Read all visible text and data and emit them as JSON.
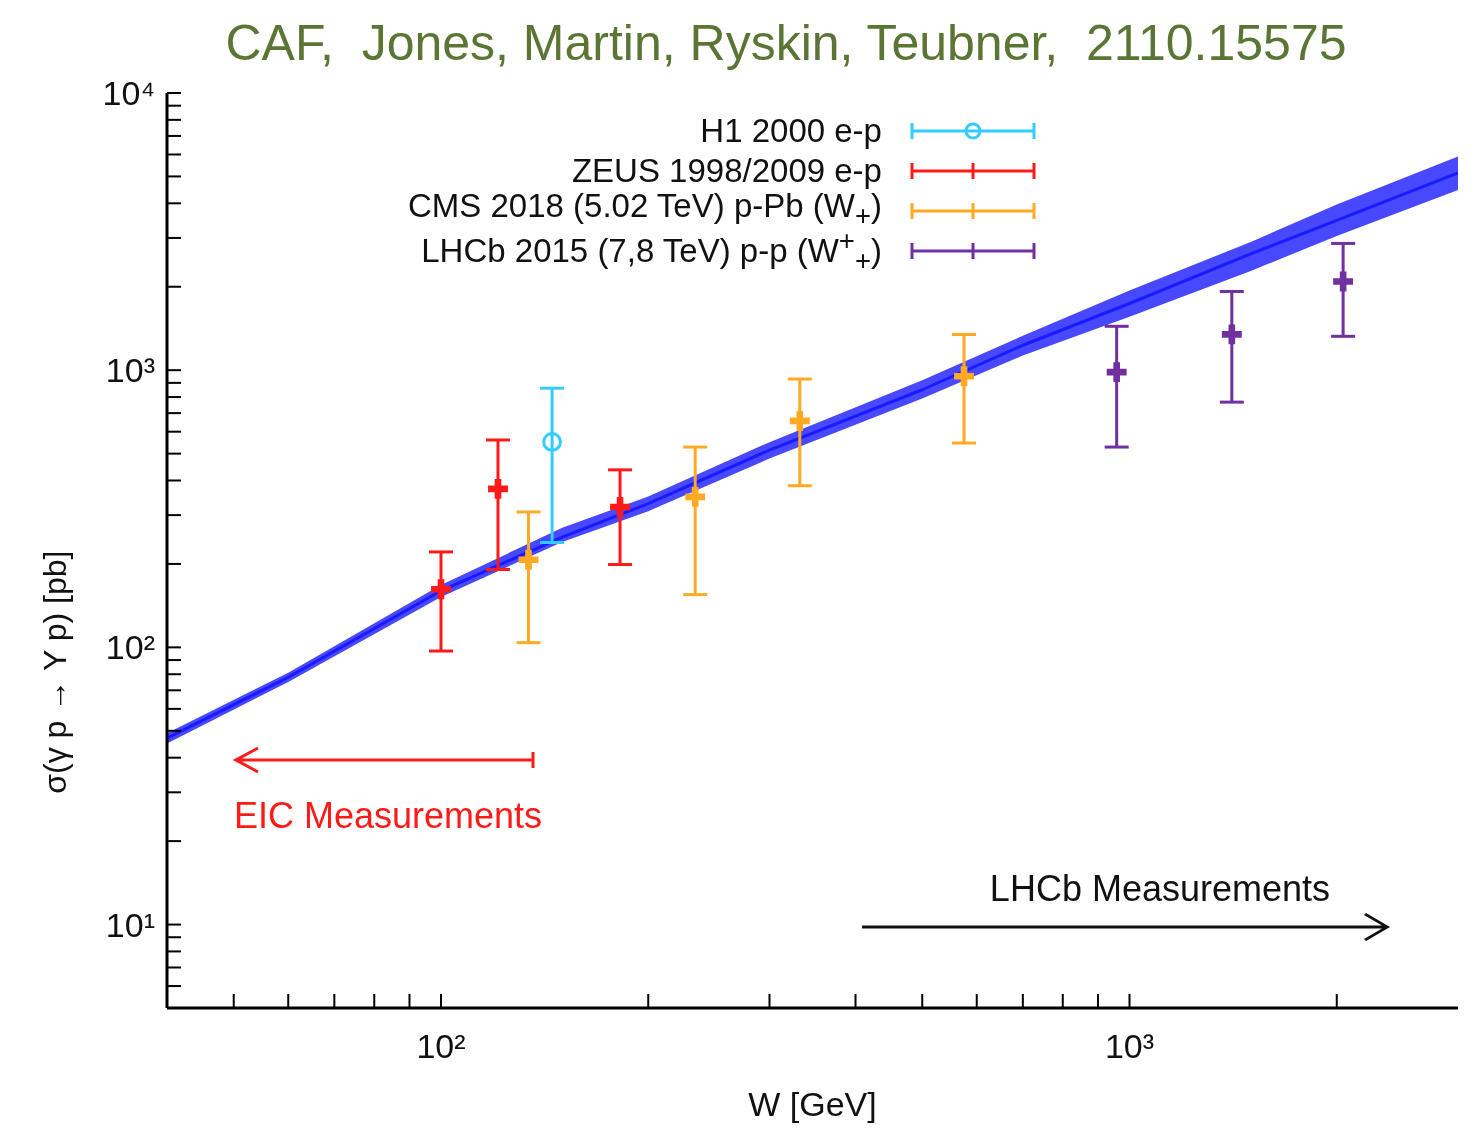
{
  "chart_data": {
    "type": "scatter",
    "title": "CAF,  Jones, Martin, Ryskin, Teubner,  2110.15575",
    "xlabel": "W [GeV]",
    "ylabel": "σ(γ p → Υ p) [pb]",
    "log": "xy",
    "grid": false,
    "legend": "top",
    "xlim": [
      40,
      3000
    ],
    "ylim": [
      5,
      10000
    ],
    "xticks": [
      {
        "value": 50,
        "label": null
      },
      {
        "value": 60,
        "label": null
      },
      {
        "value": 70,
        "label": null
      },
      {
        "value": 80,
        "label": null
      },
      {
        "value": 90,
        "label": null
      },
      {
        "value": 100,
        "label": "10²"
      },
      {
        "value": 200,
        "label": null
      },
      {
        "value": 300,
        "label": null
      },
      {
        "value": 400,
        "label": null
      },
      {
        "value": 500,
        "label": null
      },
      {
        "value": 600,
        "label": null
      },
      {
        "value": 700,
        "label": null
      },
      {
        "value": 800,
        "label": null
      },
      {
        "value": 900,
        "label": null
      },
      {
        "value": 1000,
        "label": "10³"
      },
      {
        "value": 2000,
        "label": null
      }
    ],
    "yticks": [
      {
        "value": 6,
        "label": null
      },
      {
        "value": 7,
        "label": null
      },
      {
        "value": 8,
        "label": null
      },
      {
        "value": 9,
        "label": null
      },
      {
        "value": 10,
        "label": "10¹"
      },
      {
        "value": 20,
        "label": null
      },
      {
        "value": 30,
        "label": null
      },
      {
        "value": 40,
        "label": null
      },
      {
        "value": 50,
        "label": null
      },
      {
        "value": 60,
        "label": null
      },
      {
        "value": 70,
        "label": null
      },
      {
        "value": 80,
        "label": null
      },
      {
        "value": 90,
        "label": null
      },
      {
        "value": 100,
        "label": "10²"
      },
      {
        "value": 200,
        "label": null
      },
      {
        "value": 300,
        "label": null
      },
      {
        "value": 400,
        "label": null
      },
      {
        "value": 500,
        "label": null
      },
      {
        "value": 600,
        "label": null
      },
      {
        "value": 700,
        "label": null
      },
      {
        "value": 800,
        "label": null
      },
      {
        "value": 900,
        "label": null
      },
      {
        "value": 1000,
        "label": "10³"
      },
      {
        "value": 2000,
        "label": null
      },
      {
        "value": 3000,
        "label": null
      },
      {
        "value": 4000,
        "label": null
      },
      {
        "value": 5000,
        "label": null
      },
      {
        "value": 6000,
        "label": null
      },
      {
        "value": 7000,
        "label": null
      },
      {
        "value": 8000,
        "label": null
      },
      {
        "value": 9000,
        "label": null
      },
      {
        "value": 10000,
        "label": "10⁴"
      }
    ],
    "series": [
      {
        "type": "line",
        "color": "#1a1aff",
        "x": [
          40,
          60,
          100,
          150,
          200,
          300,
          500,
          700,
          1000,
          1500,
          2000,
          3000
        ],
        "values": [
          47,
          78,
          160,
          250,
          330,
          515,
          850,
          1230,
          1740,
          2630,
          3470,
          5150
        ],
        "lower": [
          45,
          75,
          152,
          240,
          310,
          480,
          790,
          1130,
          1560,
          2280,
          3050,
          4470
        ],
        "upper": [
          49,
          81,
          168,
          270,
          350,
          550,
          920,
          1330,
          1940,
          2900,
          3960,
          5900
        ]
      },
      {
        "name": "H1 2000 e-p",
        "color": "#33ccff",
        "marker": "circle",
        "x": [
          145
        ],
        "values": [
          551
        ],
        "errors": [
          [
            239,
            861
          ]
        ]
      },
      {
        "name": "ZEUS 1998/2009 e-p",
        "color": "#ff1a1a",
        "marker": "cross",
        "x": [
          100,
          121,
          182
        ],
        "values": [
          162,
          373,
          321
        ],
        "errors": [
          [
            97,
            221
          ],
          [
            191,
            560
          ],
          [
            199,
            437
          ]
        ]
      },
      {
        "name": "CMS 2018 (5.02 TeV) p-Pb (W$_{+}$)",
        "color": "#ffaa22",
        "marker": "cross",
        "x": [
          134,
          234,
          332,
          575
        ],
        "values": [
          207,
          349,
          656,
          951
        ],
        "errors": [
          [
            104,
            308
          ],
          [
            155,
            528
          ],
          [
            383,
            929
          ],
          [
            546,
            1345
          ]
        ]
      },
      {
        "name": "LHCb 2015 (7,8 TeV) p-p (W$^{+}$$_{+}$)",
        "color": "#7030a0",
        "marker": "cross",
        "x": [
          958,
          1408,
          2043
        ],
        "values": [
          984,
          1346,
          2090
        ],
        "errors": [
          [
            528,
            1440
          ],
          [
            767,
            1923
          ],
          [
            1325,
            2866
          ]
        ]
      }
    ],
    "annotations": [
      "EIC Measurements",
      "LHCb Measurements"
    ]
  }
}
